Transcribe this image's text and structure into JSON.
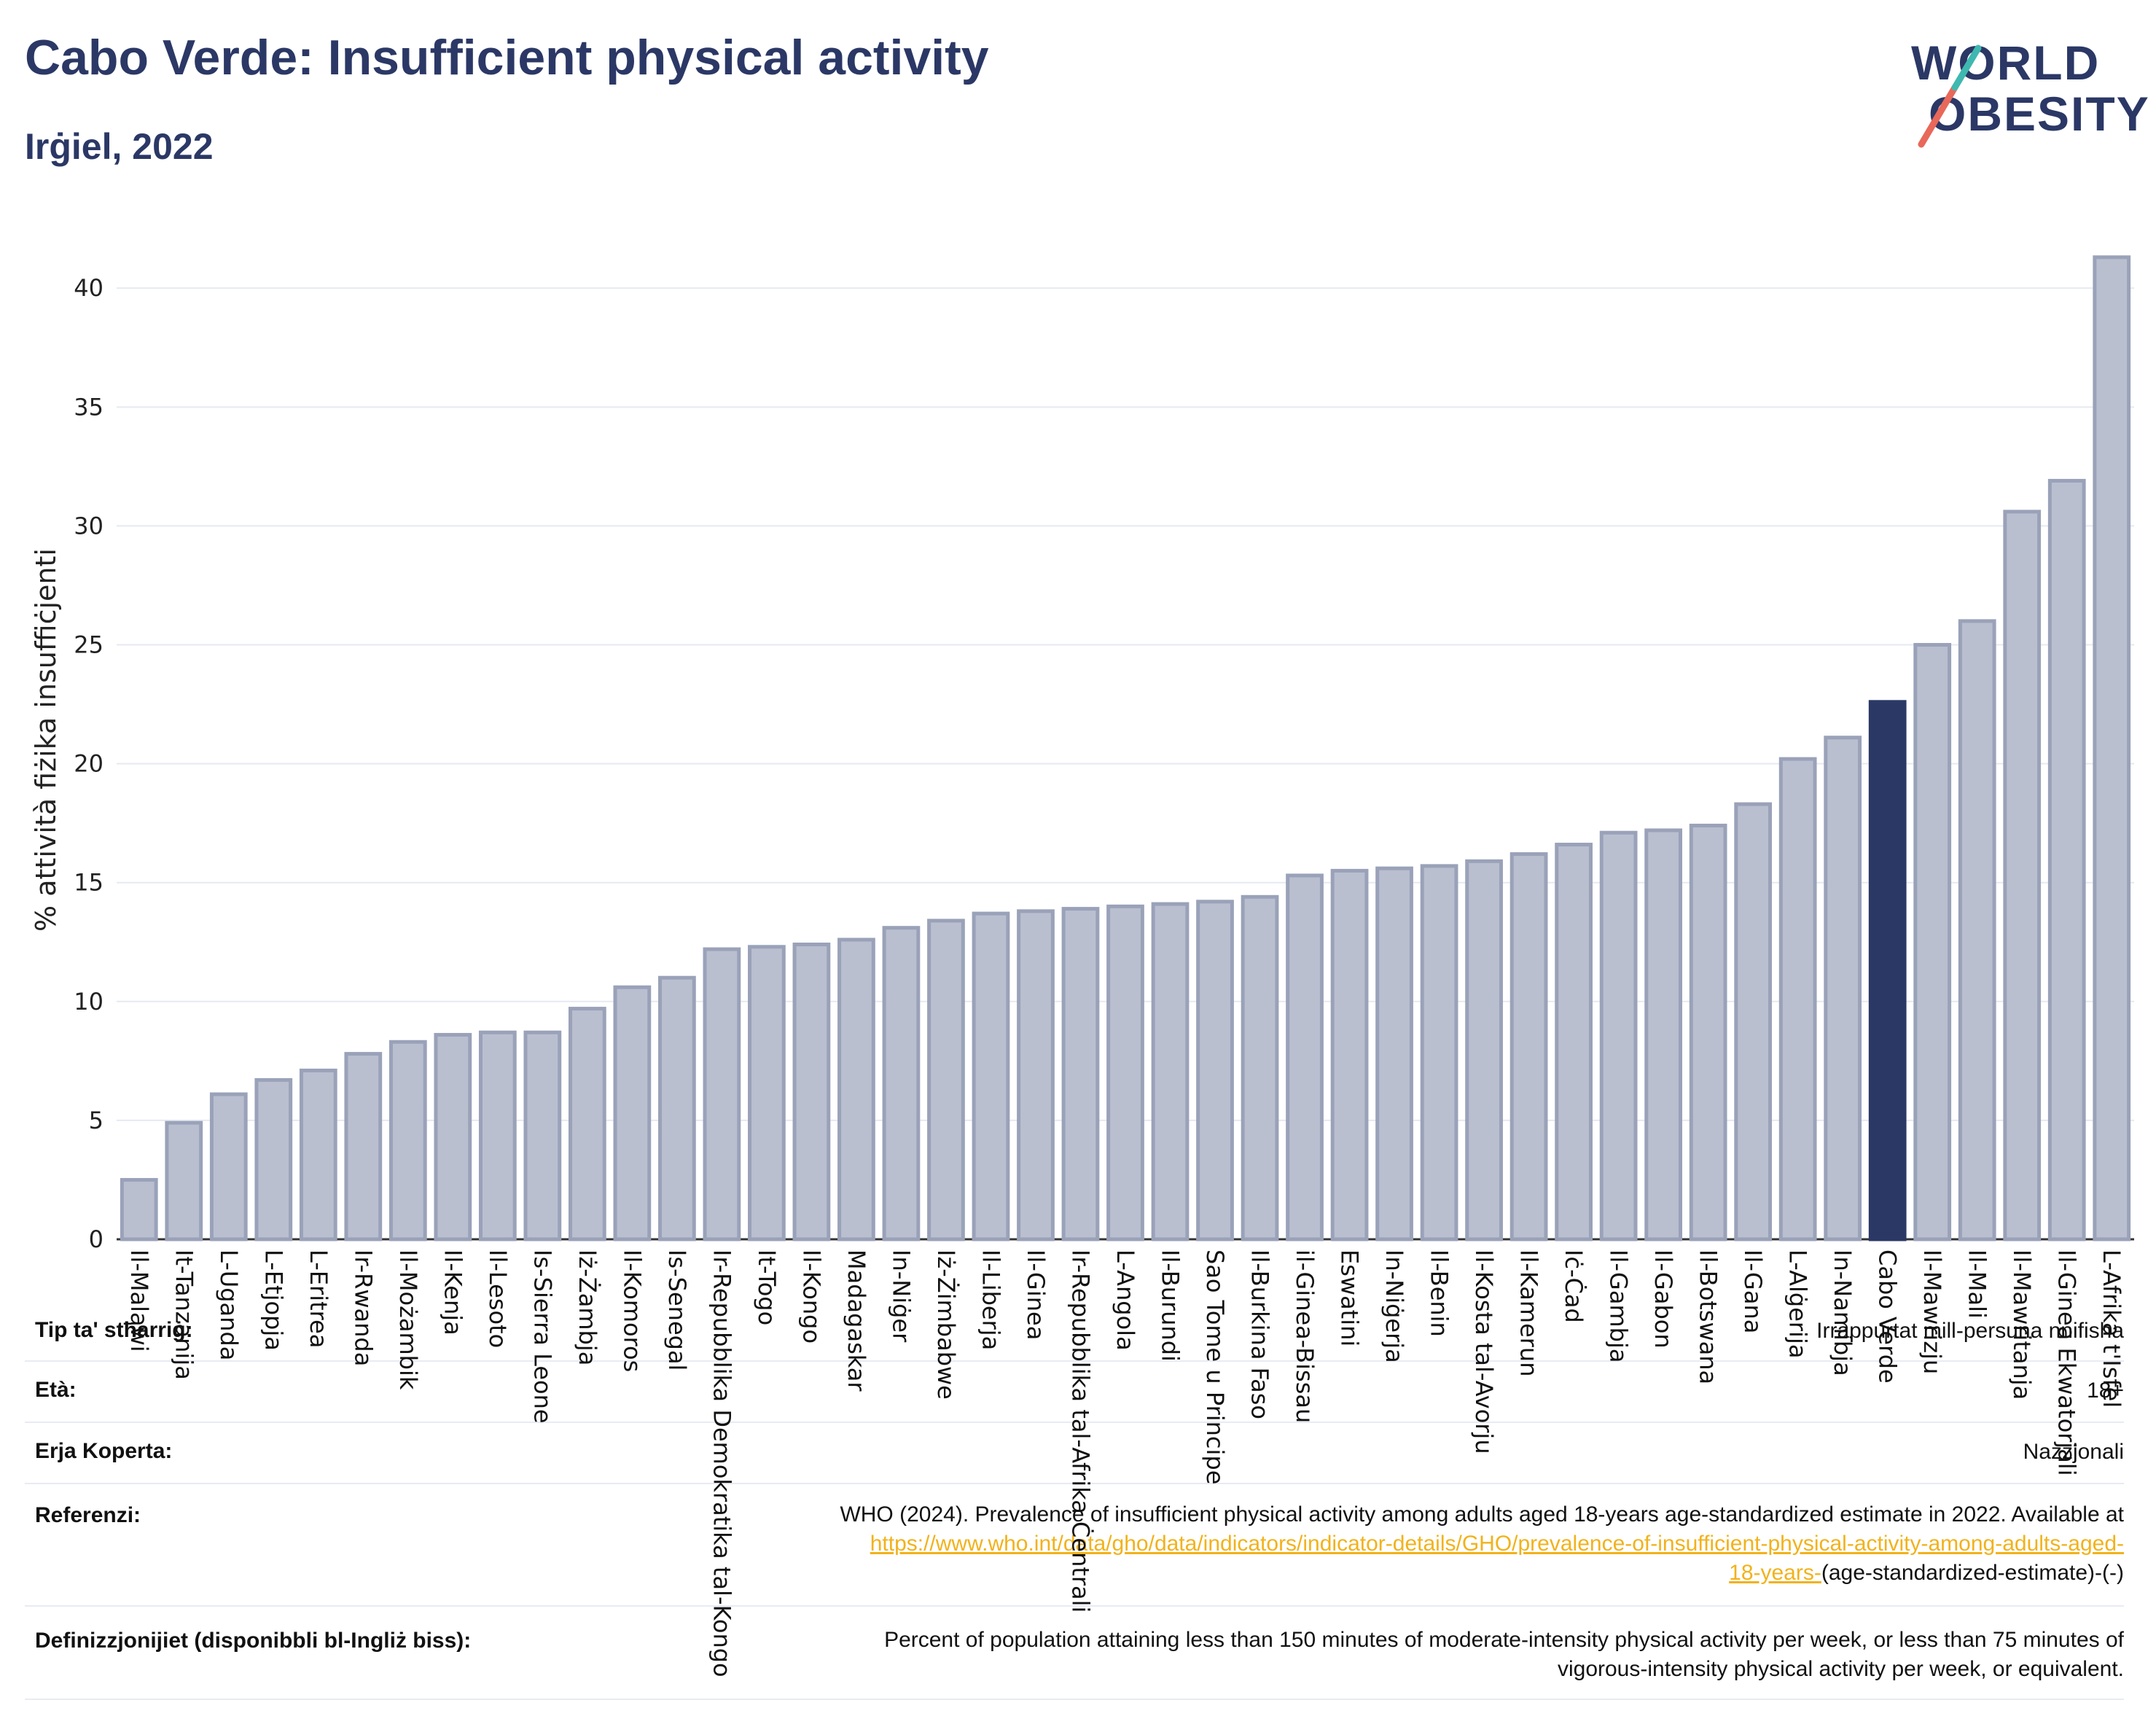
{
  "header": {
    "title": "Cabo Verde: Insufficient physical activity",
    "subtitle": "Irġiel, 2022",
    "logo_line1": "WORLD",
    "logo_line2": "OBESITY"
  },
  "colors": {
    "bar": "#b9bfcf",
    "bar_edge": "#9aa2b9",
    "highlight": "#2b3866",
    "grid": "#e6e9f2",
    "title": "#2b3866",
    "logo_teal": "#3fb8b0",
    "logo_red": "#e8685a"
  },
  "chart_data": {
    "type": "bar",
    "ylabel": "% attività fiżika insuffiċjenti",
    "xlabel": "",
    "ylim": [
      0,
      42
    ],
    "yticks": [
      0,
      5,
      10,
      15,
      20,
      25,
      30,
      35,
      40
    ],
    "grid": true,
    "highlight": "Cabo Verde",
    "categories": [
      "Il-Malawi",
      "It-Tanzanija",
      "L-Uganda",
      "L-Etjopja",
      "L-Eritrea",
      "Ir-Rwanda",
      "Il-Możambik",
      "Il-Kenja",
      "Il-Lesoto",
      "Is-Sierra Leone",
      "Iż-Żambja",
      "Il-Komoros",
      "Is-Senegal",
      "Ir-Repubblika Demokratika tal-Kongo",
      "It-Togo",
      "Il-Kongo",
      "Madagaskar",
      "In-Niġer",
      "Iż-Żimbabwe",
      "Il-Liberja",
      "Il-Ginea",
      "Ir-Repubblika tal-Afrika Ċentrali",
      "L-Angola",
      "Il-Burundi",
      "Sao Tome u Principe",
      "Il-Burkina Faso",
      "il-Ginea-Bissau",
      "Eswatini",
      "In-Niġerja",
      "Il-Benin",
      "Il-Kosta tal-Avorju",
      "Il-Kamerun",
      "Iċ-Ċad",
      "Il-Gambja",
      "Il-Gabon",
      "Il-Botswana",
      "Il-Gana",
      "L-Alġerija",
      "In-Namibja",
      "Cabo Verde",
      "Il-Mawrizju",
      "Il-Mali",
      "Il-Mawritanja",
      "Il-Ginea Ekwatorjali",
      "L-Afrika t'Isfel"
    ],
    "values": [
      2.5,
      4.9,
      6.1,
      6.7,
      7.1,
      7.8,
      8.3,
      8.6,
      8.7,
      8.7,
      9.7,
      10.6,
      11.0,
      12.2,
      12.3,
      12.4,
      12.6,
      13.1,
      13.4,
      13.7,
      13.8,
      13.9,
      14.0,
      14.1,
      14.2,
      14.4,
      15.3,
      15.5,
      15.6,
      15.7,
      15.9,
      16.2,
      16.6,
      17.1,
      17.2,
      17.4,
      18.3,
      20.2,
      21.1,
      22.6,
      25.0,
      26.0,
      30.6,
      31.9,
      41.3
    ]
  },
  "meta": {
    "type_label": "Tip ta' stħarriġ:",
    "type_value": "Irrappurtat mill-persuna nnifisha",
    "age_label": "Età:",
    "age_value": "18+",
    "area_label": "Erja Koperta:",
    "area_value": "Nazzjonali",
    "ref_label": "Referenzi:",
    "ref_text": "WHO (2024). Prevalence of insufficient physical activity among adults aged 18-years age-standardized estimate in 2022. Available at",
    "ref_link1": "https://www.who.int/data/gho/data/indicators/indicator-details/GHO/prevalence-of-insufficient-physical-activity-among-adults-aged-",
    "ref_link2": "18-years-",
    "ref_tail": "(age-standardized-estimate)-(-)",
    "def_label": "Definizzjonijiet (disponibbli bl-Ingliż biss):",
    "def_text1": "Percent of population attaining less than 150 minutes of moderate-intensity physical activity per week, or less than 75 minutes of",
    "def_text2": "vigorous-intensity physical activity per week, or equivalent."
  }
}
